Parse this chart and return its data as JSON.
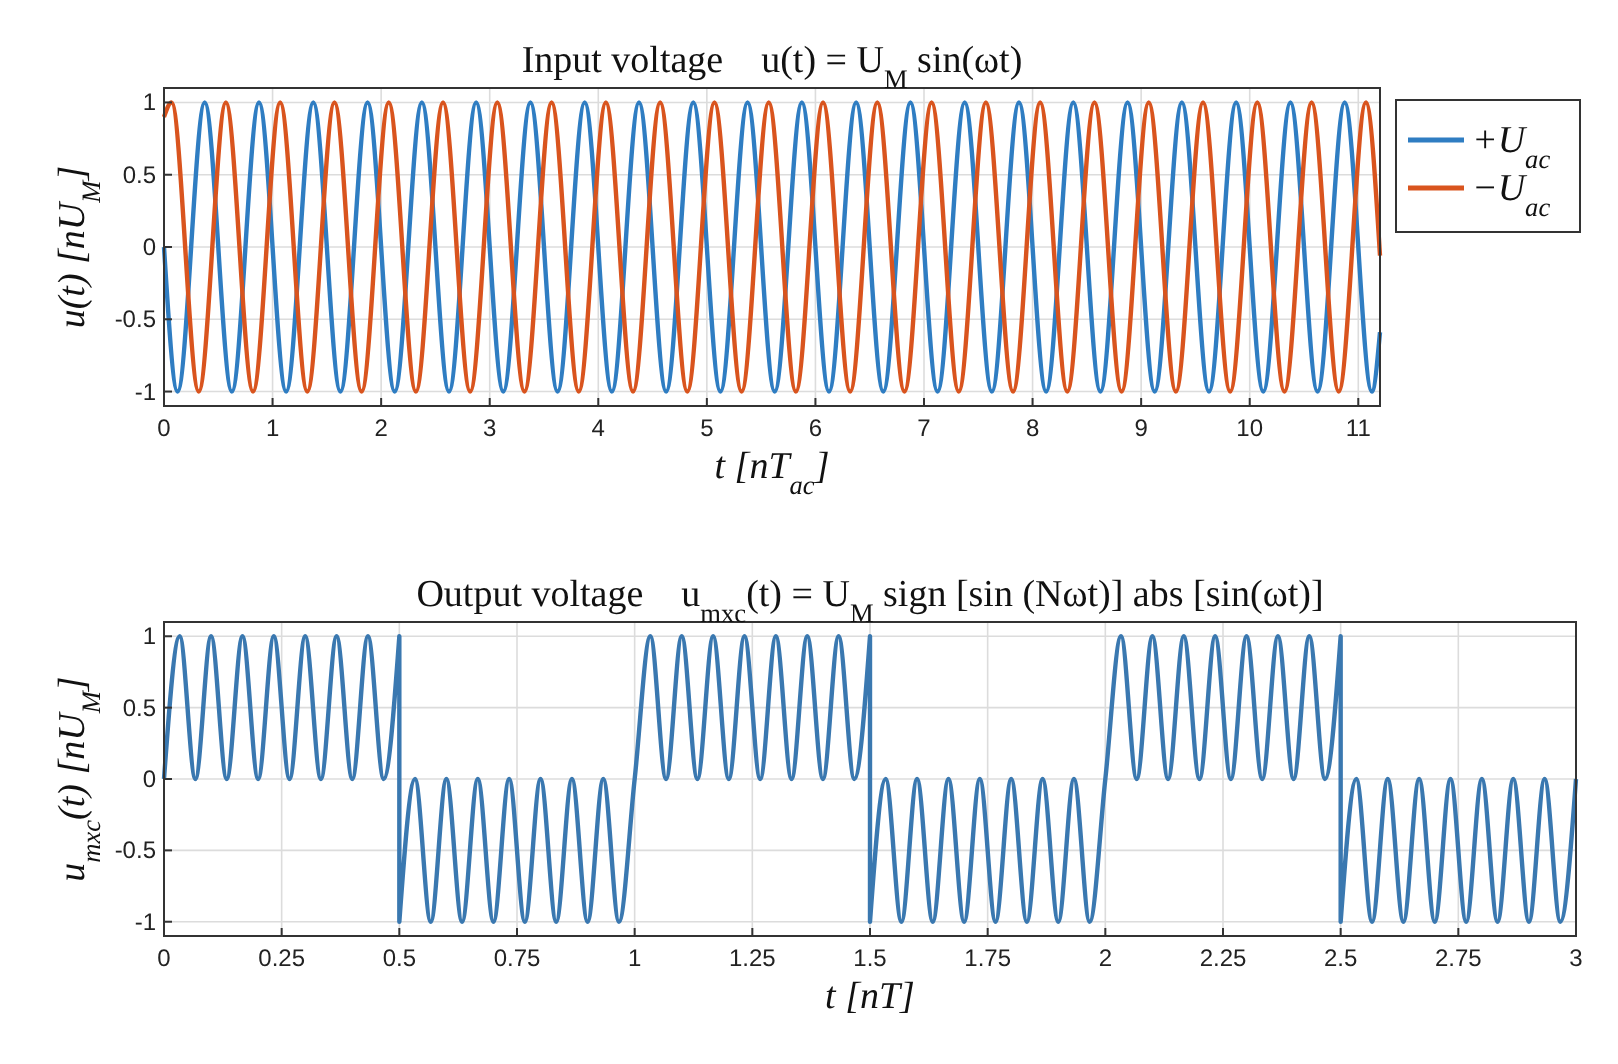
{
  "chart_data": [
    {
      "type": "line",
      "title": "Input voltage    u(t) = U$_{M}$ sin(ωt)",
      "xlabel": "t [nT$_{ac}$]",
      "ylabel": "u(t) [nU$_{M}$]",
      "xlim": [
        0,
        11.2
      ],
      "xticks": [
        0,
        1,
        2,
        3,
        4,
        5,
        6,
        7,
        8,
        9,
        10,
        11
      ],
      "ylim": [
        -1.1,
        1.1
      ],
      "yticks": [
        -1,
        -0.5,
        0,
        0.5,
        1
      ],
      "grid": true,
      "legend": "right",
      "line_style": "solid",
      "series": [
        {
          "name": "+U$_{ac}$",
          "color": "#2f7dc2",
          "x": [
            0,
            0.125,
            0.375,
            0.625,
            0.875,
            1.125,
            1.375,
            1.625,
            1.875,
            2.125,
            2.375,
            2.625,
            2.875,
            3.125,
            3.375,
            3.625,
            3.875,
            4.125,
            4.375,
            4.625,
            4.875,
            5.125,
            5.375,
            5.625,
            5.875,
            6.125,
            6.375,
            6.625,
            6.875,
            7.125,
            7.375,
            7.625,
            7.875,
            8.125,
            8.375,
            8.625,
            8.875,
            9.125,
            9.375,
            9.625,
            9.875,
            10.125,
            10.375,
            10.625,
            10.875,
            11.125,
            11.2
          ],
          "values": [
            0,
            -1,
            1,
            -1,
            1,
            -1,
            1,
            -1,
            1,
            -1,
            1,
            -1,
            1,
            -1,
            1,
            -1,
            1,
            -1,
            1,
            -1,
            1,
            -1,
            1,
            -1,
            1,
            -1,
            1,
            -1,
            1,
            -1,
            1,
            -1,
            1,
            -1,
            1,
            -1,
            1,
            -1,
            1,
            -1,
            1,
            -1,
            1,
            -1,
            1,
            -1,
            -0.59
          ]
        },
        {
          "name": "−U$_{ac}$",
          "color": "#d9541e",
          "x": [
            0,
            0.07,
            0.32,
            0.57,
            0.82,
            1.07,
            1.32,
            1.57,
            1.82,
            2.07,
            2.32,
            2.57,
            2.82,
            3.07,
            3.32,
            3.57,
            3.82,
            4.07,
            4.32,
            4.57,
            4.82,
            5.07,
            5.32,
            5.57,
            5.82,
            6.07,
            6.32,
            6.57,
            6.82,
            7.07,
            7.32,
            7.57,
            7.82,
            8.07,
            8.32,
            8.57,
            8.82,
            9.07,
            9.32,
            9.57,
            9.82,
            10.07,
            10.32,
            10.57,
            10.82,
            11.07,
            11.2
          ],
          "values": [
            0.9,
            1,
            -1,
            1,
            -1,
            1,
            -1,
            1,
            -1,
            1,
            -1,
            1,
            -1,
            1,
            -1,
            1,
            -1,
            1,
            -1,
            1,
            -1,
            1,
            -1,
            1,
            -1,
            1,
            -1,
            1,
            -1,
            1,
            -1,
            1,
            -1,
            1,
            -1,
            1,
            -1,
            1,
            -1,
            1,
            -1,
            1,
            -1,
            1,
            -1,
            1,
            -0.06
          ]
        }
      ]
    },
    {
      "type": "line",
      "title": "Output voltage    u$_{mxc}$(t) = U$_{M}$ sign [sin (Nωt)] abs [sin(ωt)]",
      "xlabel": "t [nT]",
      "ylabel": "u$_{mxc}$(t) [nU$_{M}$]",
      "xlim": [
        0,
        3
      ],
      "xticks": [
        0,
        0.25,
        0.5,
        0.75,
        1,
        1.25,
        1.5,
        1.75,
        2,
        2.25,
        2.5,
        2.75,
        3
      ],
      "ylim": [
        -1.1,
        1.1
      ],
      "yticks": [
        -1,
        -0.5,
        0,
        0.5,
        1
      ],
      "grid": true,
      "line_style": "solid",
      "series": [
        {
          "color": "#3a78b0",
          "x": [
            0,
            0.0333,
            0.0667,
            0.1,
            0.1333,
            0.1667,
            0.2,
            0.2333,
            0.2667,
            0.3,
            0.3333,
            0.3667,
            0.4,
            0.4333,
            0.4667,
            0.5,
            0.5,
            0.5333,
            0.5667,
            0.6,
            0.6333,
            0.6667,
            0.7,
            0.7333,
            0.7667,
            0.8,
            0.8333,
            0.8667,
            0.9,
            0.9333,
            0.9667,
            1,
            1.0333,
            1.0667,
            1.1,
            1.1333,
            1.1667,
            1.2,
            1.2333,
            1.2667,
            1.3,
            1.3333,
            1.3667,
            1.4,
            1.4333,
            1.4667,
            1.5,
            1.5,
            1.5333,
            1.5667,
            1.6,
            1.6333,
            1.6667,
            1.7,
            1.7333,
            1.7667,
            1.8,
            1.8333,
            1.8667,
            1.9,
            1.9333,
            1.9667,
            2,
            2.0333,
            2.0667,
            2.1,
            2.1333,
            2.1667,
            2.2,
            2.2333,
            2.2667,
            2.3,
            2.3333,
            2.3667,
            2.4,
            2.4333,
            2.4667,
            2.5,
            2.5,
            2.5333,
            2.5667,
            2.6,
            2.6333,
            2.6667,
            2.7,
            2.7333,
            2.7667,
            2.8,
            2.8333,
            2.8667,
            2.9,
            2.9333,
            2.9667,
            3
          ],
          "values": [
            0,
            1,
            0,
            1,
            0,
            1,
            0,
            1,
            0,
            1,
            0,
            1,
            0,
            1,
            0,
            1,
            -1,
            0,
            -1,
            0,
            -1,
            0,
            -1,
            0,
            -1,
            0,
            -1,
            0,
            -1,
            0,
            -1,
            0,
            1,
            0,
            1,
            0,
            1,
            0,
            1,
            0,
            1,
            0,
            1,
            0,
            1,
            0,
            1,
            -1,
            0,
            -1,
            0,
            -1,
            0,
            -1,
            0,
            -1,
            0,
            -1,
            0,
            -1,
            0,
            -1,
            0,
            1,
            0,
            1,
            0,
            1,
            0,
            1,
            0,
            1,
            0,
            1,
            0,
            1,
            0,
            1,
            -1,
            0,
            -1,
            0,
            -1,
            0,
            -1,
            0,
            -1,
            0,
            -1,
            0,
            -1,
            0,
            -1,
            0
          ]
        }
      ]
    }
  ]
}
